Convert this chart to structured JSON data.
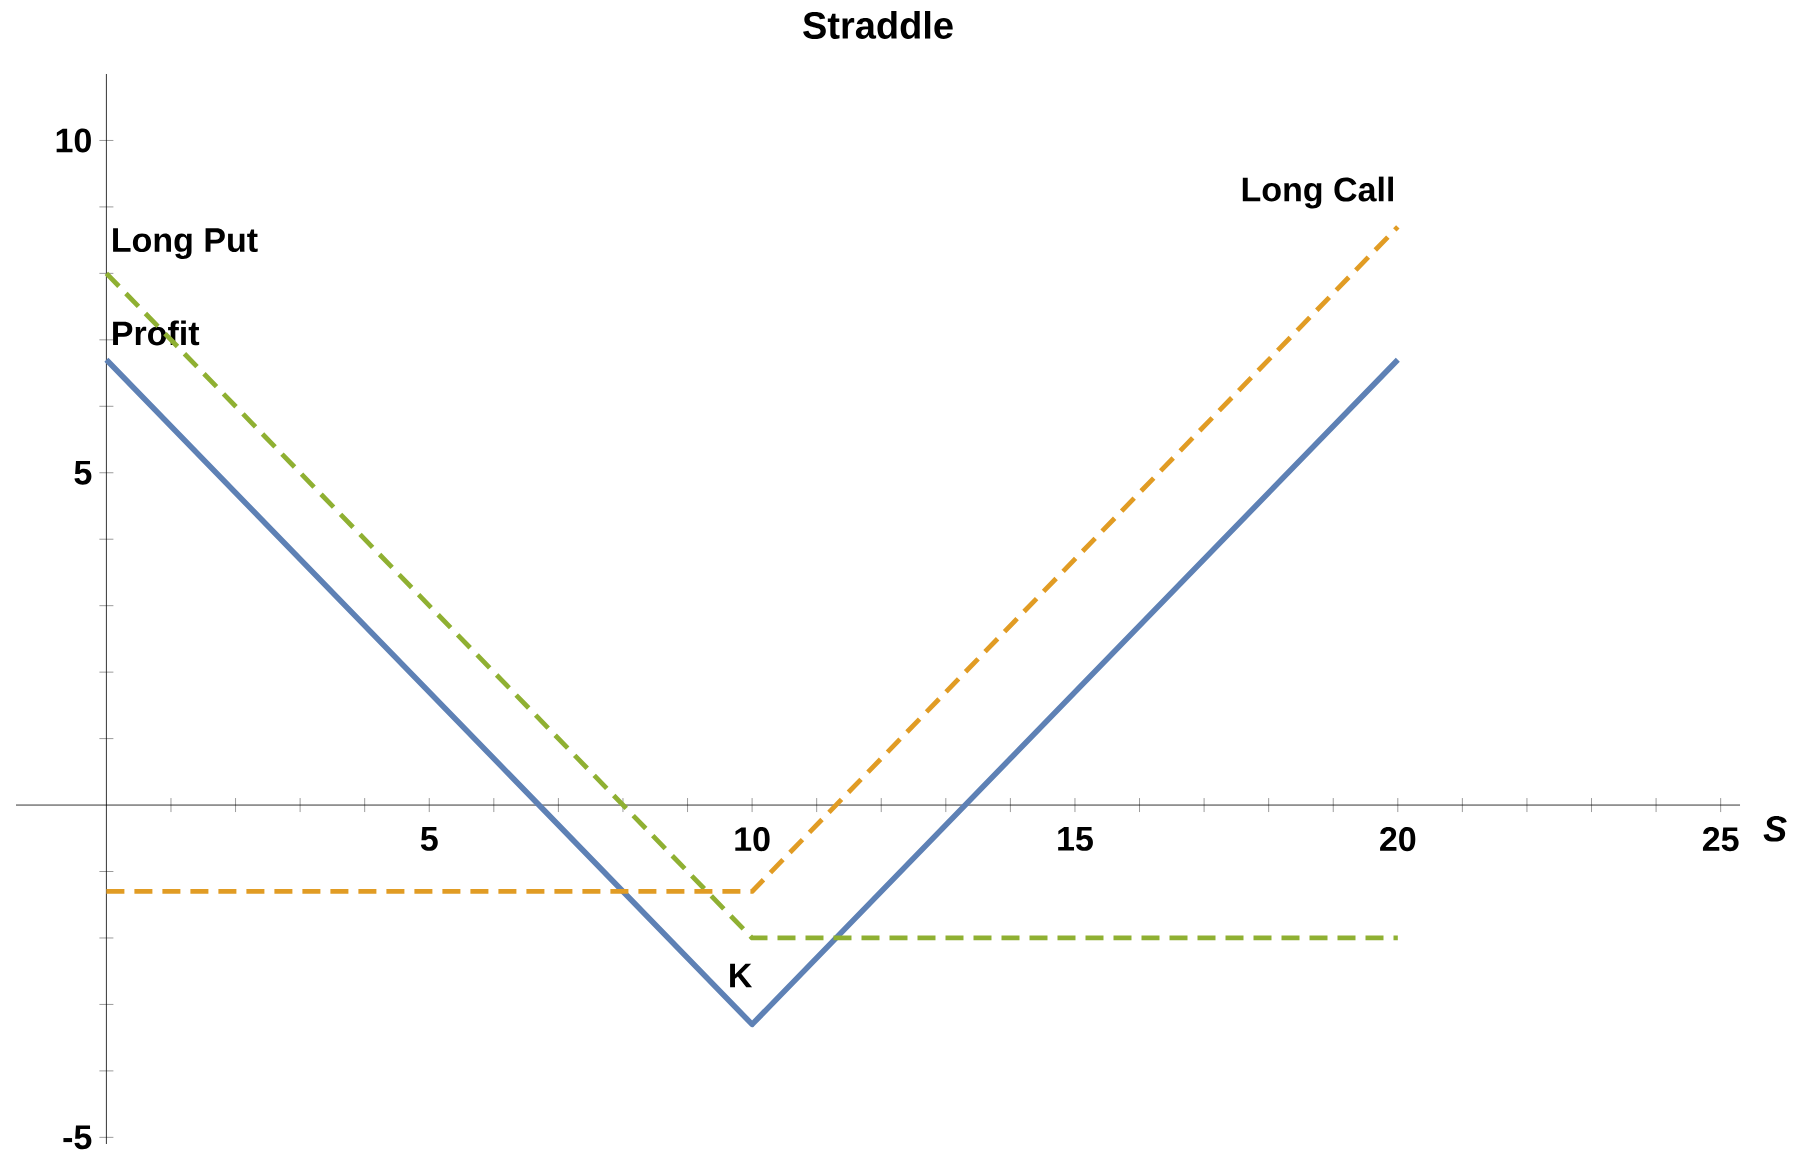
{
  "chart_data": {
    "type": "line",
    "title": "Straddle",
    "xlabel": "S",
    "legend": false,
    "grid": false,
    "xlim": [
      -1.4,
      25.3
    ],
    "ylim": [
      -5.1,
      11
    ],
    "xticks": [
      {
        "value": 1,
        "label": null
      },
      {
        "value": 2,
        "label": null
      },
      {
        "value": 3,
        "label": null
      },
      {
        "value": 4,
        "label": null
      },
      5,
      {
        "value": 6,
        "label": null
      },
      {
        "value": 7,
        "label": null
      },
      {
        "value": 8,
        "label": null
      },
      {
        "value": 9,
        "label": null
      },
      10,
      {
        "value": 11,
        "label": null
      },
      {
        "value": 12,
        "label": null
      },
      {
        "value": 13,
        "label": null
      },
      {
        "value": 14,
        "label": null
      },
      15,
      {
        "value": 16,
        "label": null
      },
      {
        "value": 17,
        "label": null
      },
      {
        "value": 18,
        "label": null
      },
      {
        "value": 19,
        "label": null
      },
      20,
      {
        "value": 21,
        "label": null
      },
      {
        "value": 22,
        "label": null
      },
      {
        "value": 23,
        "label": null
      },
      {
        "value": 24,
        "label": null
      },
      25
    ],
    "yticks": [
      -5,
      {
        "value": -4,
        "label": null
      },
      {
        "value": -3,
        "label": null
      },
      {
        "value": -2,
        "label": null
      },
      {
        "value": -1,
        "label": null
      },
      {
        "value": 1,
        "label": null
      },
      {
        "value": 2,
        "label": null
      },
      {
        "value": 3,
        "label": null
      },
      {
        "value": 4,
        "label": null
      },
      5,
      {
        "value": 6,
        "label": null
      },
      {
        "value": 7,
        "label": null
      },
      {
        "value": 8,
        "label": null
      },
      {
        "value": 9,
        "label": null
      },
      10
    ],
    "series": [
      {
        "name": "Profit",
        "color": "#5e81b5",
        "line_style": "solid",
        "x": [
          0,
          10,
          20
        ],
        "values": [
          6.7,
          -3.3,
          6.7
        ]
      },
      {
        "name": "Long Put",
        "color": "#8fb032",
        "line_style": "dashed",
        "x": [
          0,
          10,
          20
        ],
        "values": [
          8,
          -2,
          -2
        ]
      },
      {
        "name": "Long Call",
        "color": "#e19c24",
        "line_style": "dashed",
        "x": [
          0,
          10,
          20
        ],
        "values": [
          -1.3,
          -1.3,
          8.7
        ]
      }
    ],
    "annotations": [
      "K"
    ]
  }
}
